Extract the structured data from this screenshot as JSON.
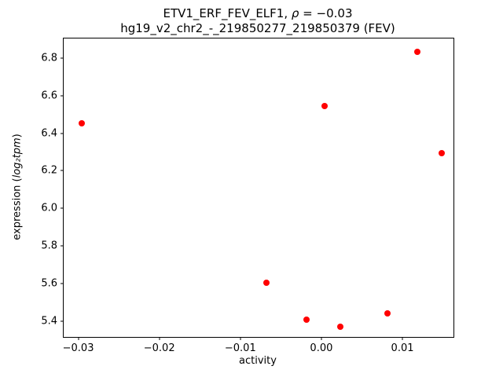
{
  "chart_data": {
    "type": "scatter",
    "title": {
      "line1_name": "ETV1_ERF_FEV_ELF1, ",
      "line1_rho": "ρ",
      "line1_value": " = −0.03",
      "line2": "hg19_v2_chr2_-_219850277_219850379 (FEV)"
    },
    "xlabel": "activity",
    "ylabel": {
      "prefix": "expression (",
      "math": "log₂tpm",
      "suffix": ")"
    },
    "xlim": [
      -0.0318,
      0.0163
    ],
    "ylim": [
      5.315,
      6.905
    ],
    "x_ticks": [
      -0.03,
      -0.02,
      -0.01,
      0.0,
      0.01
    ],
    "x_tick_labels": [
      "−0.03",
      "−0.02",
      "−0.01",
      "0.00",
      "0.01"
    ],
    "y_ticks": [
      5.4,
      5.6,
      5.8,
      6.0,
      6.2,
      6.4,
      6.6,
      6.8
    ],
    "y_tick_labels": [
      "5.4",
      "5.6",
      "5.8",
      "6.0",
      "6.2",
      "6.4",
      "6.6",
      "6.8"
    ],
    "marker_color": "#ff0000",
    "grid": false,
    "legend": null,
    "points": [
      {
        "x": -0.0296,
        "y": 6.455
      },
      {
        "x": 0.0004,
        "y": 6.545
      },
      {
        "x": 0.0118,
        "y": 6.835
      },
      {
        "x": 0.0148,
        "y": 6.295
      },
      {
        "x": -0.0068,
        "y": 5.605
      },
      {
        "x": -0.0018,
        "y": 5.405
      },
      {
        "x": 0.0023,
        "y": 5.37
      },
      {
        "x": 0.0082,
        "y": 5.44
      }
    ]
  }
}
